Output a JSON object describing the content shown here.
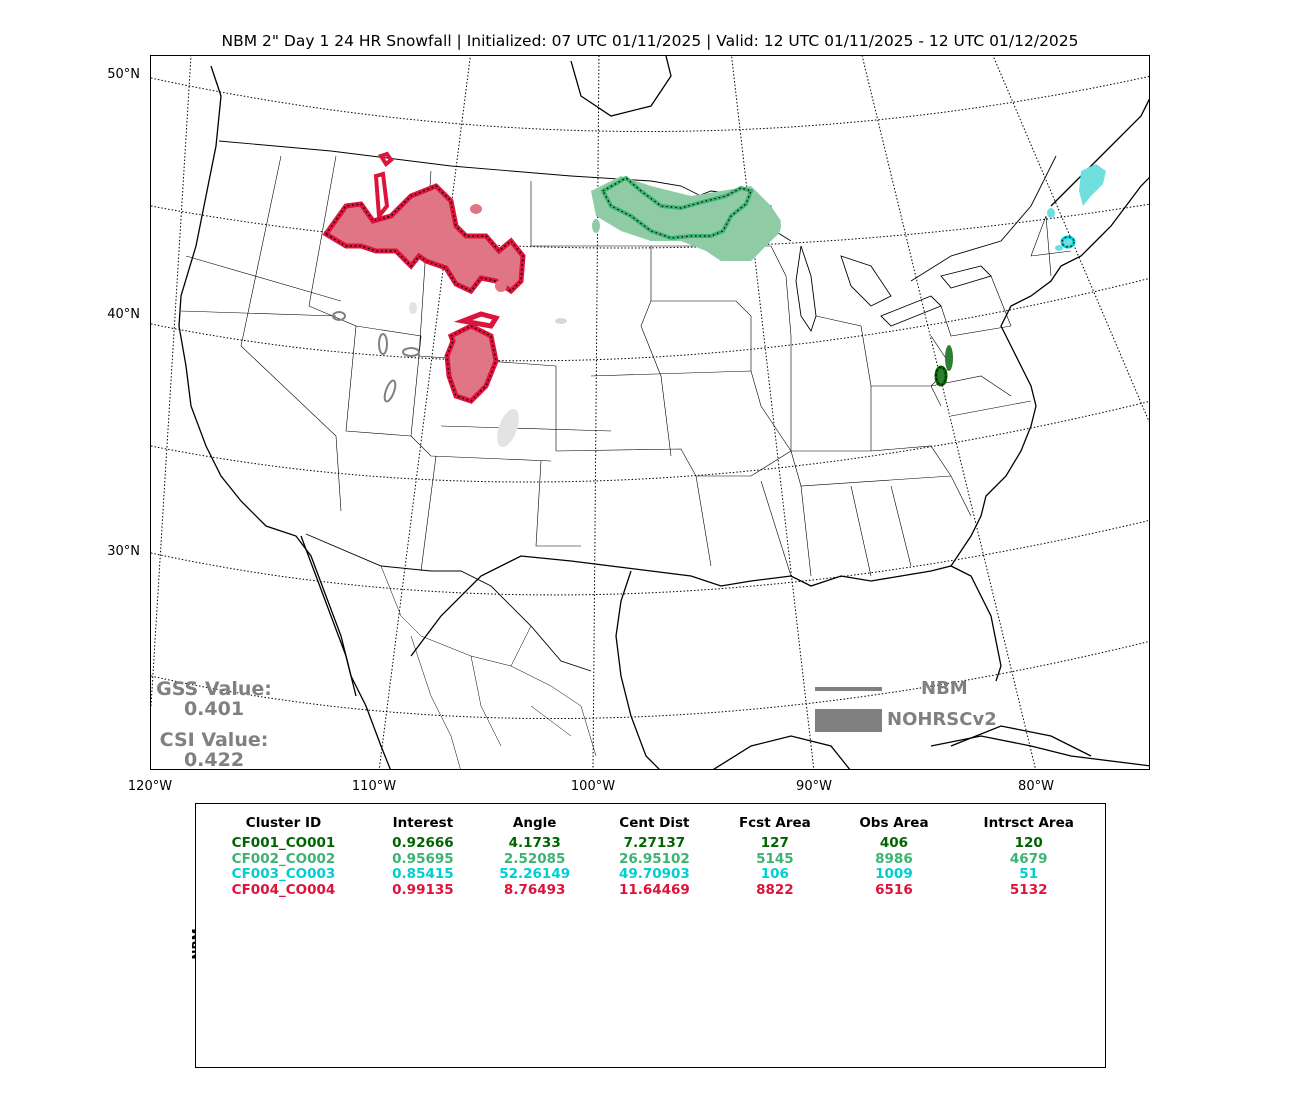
{
  "title": "NBM 2\" Day 1 24 HR Snowfall | Initialized: 07 UTC 01/11/2025 | Valid: 12 UTC 01/11/2025 - 12 UTC 01/12/2025",
  "map": {
    "lat_labels": [
      "50°N",
      "40°N",
      "30°N"
    ],
    "lon_labels": [
      "120°W",
      "110°W",
      "100°W",
      "90°W",
      "80°W"
    ]
  },
  "scores": {
    "gss_label": "GSS Value:",
    "gss_value": "0.401",
    "csi_label": "CSI Value:",
    "csi_value": "0.422"
  },
  "legend": {
    "line_label": "NBM",
    "fill_label": "NOHRSCv2",
    "color": "#808080"
  },
  "colors": {
    "cluster1": "#006400",
    "cluster2": "#3cb371",
    "cluster3": "#00ced1",
    "cluster4": "#dc143c",
    "cluster1_fill": "#2e7d32",
    "cluster2_fill": "#8fcca6",
    "cluster3_fill": "#6fdede",
    "cluster4_fill": "#e07585",
    "unmatched_fill": "#e3e3e3",
    "unmatched_line": "#808080"
  },
  "stats": {
    "side_label": "NBM",
    "headers": [
      "Cluster ID",
      "Interest",
      "Angle",
      "Cent Dist",
      "Fcst Area",
      "Obs Area",
      "Intrsct Area"
    ],
    "rows": [
      [
        "CF001_CO001",
        "0.92666",
        "4.1733",
        "7.27137",
        "127",
        "406",
        "120"
      ],
      [
        "CF002_CO002",
        "0.95695",
        "2.52085",
        "26.95102",
        "5145",
        "8986",
        "4679"
      ],
      [
        "CF003_CO003",
        "0.85415",
        "52.26149",
        "49.70903",
        "106",
        "1009",
        "51"
      ],
      [
        "CF004_CO004",
        "0.99135",
        "8.76493",
        "11.64469",
        "8822",
        "6516",
        "5132"
      ]
    ]
  }
}
